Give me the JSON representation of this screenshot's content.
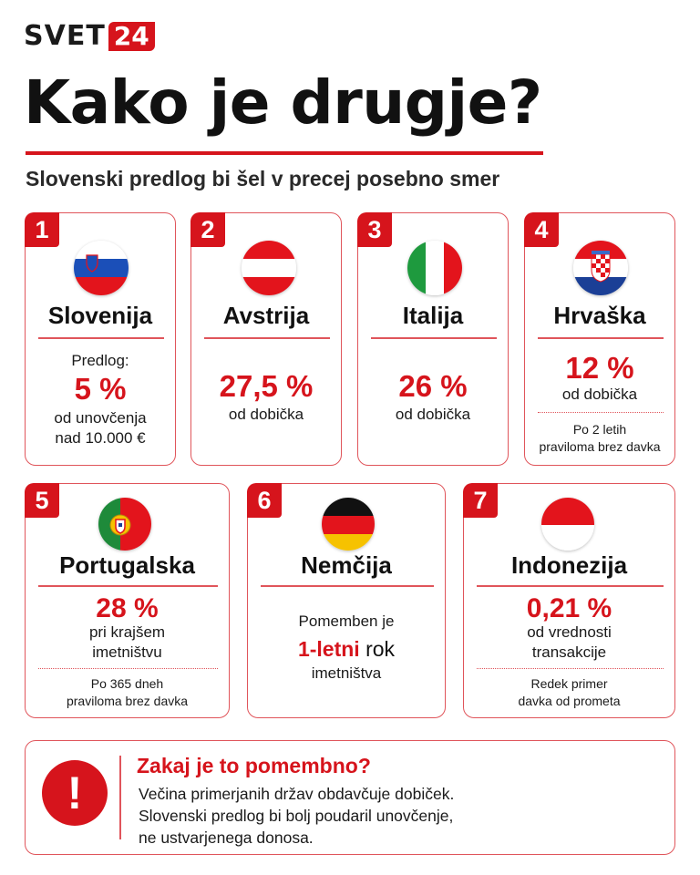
{
  "logo": {
    "part1": "SVET",
    "part2": "24"
  },
  "headline": "Kako je drugje?",
  "subtitle": "Slovenski predlog bi šel v precej posebno smer",
  "colors": {
    "accent": "#d6141c",
    "border": "#e0555b"
  },
  "countries": [
    {
      "num": "1",
      "name": "Slovenija",
      "flag": "slovenia-flag-icon",
      "line_pre": "Predlog:",
      "value": "5 %",
      "line1": "od unovčenja",
      "line2": "nad 10.000 €"
    },
    {
      "num": "2",
      "name": "Avstrija",
      "flag": "austria-flag-icon",
      "value": "27,5 %",
      "line1": "od dobička"
    },
    {
      "num": "3",
      "name": "Italija",
      "flag": "italy-flag-icon",
      "value": "26 %",
      "line1": "od dobička"
    },
    {
      "num": "4",
      "name": "Hrvaška",
      "flag": "croatia-flag-icon",
      "value": "12 %",
      "line1": "od dobička",
      "note1": "Po 2 letih",
      "note2": "praviloma brez davka"
    },
    {
      "num": "5",
      "name": "Portugalska",
      "flag": "portugal-flag-icon",
      "value": "28 %",
      "line1": "pri krajšem",
      "line2": "imetništvu",
      "note1": "Po 365 dneh",
      "note2": "praviloma brez davka"
    },
    {
      "num": "6",
      "name": "Nemčija",
      "flag": "germany-flag-icon",
      "line_pre": "Pomemben je",
      "value_red": "1-letni",
      "value_rest": " rok",
      "line1": "imetništva"
    },
    {
      "num": "7",
      "name": "Indonezija",
      "flag": "indonesia-flag-icon",
      "value": "0,21 %",
      "line1": "od vrednosti",
      "line2": "transakcije",
      "note1": "Redek primer",
      "note2": "davka od prometa"
    }
  ],
  "info": {
    "icon": "exclamation-icon",
    "title": "Zakaj je to pomembno?",
    "lines": [
      "Večina primerjanih držav obdavčuje dobiček.",
      "Slovenski predlog bi bolj poudaril unovčenje,",
      "ne ustvarjenega donosa."
    ]
  }
}
